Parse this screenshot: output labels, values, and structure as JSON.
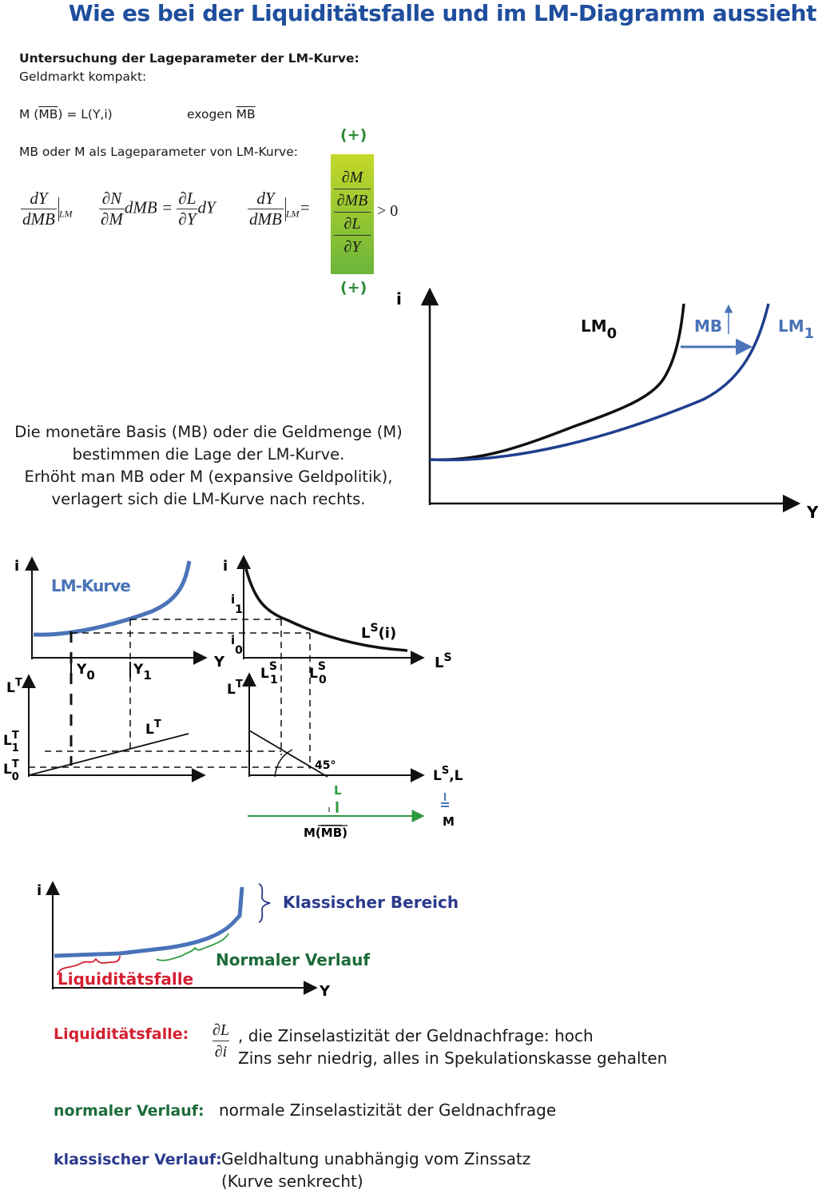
{
  "title": "Wie es bei der Liquiditätsfalle und im LM-Diagramm aussieht",
  "section_heading": "Untersuchung der Lageparameter der LM-Kurve:",
  "subheading": "Geldmarkt kompakt:",
  "equation": "M (MB) = L(Y,i)",
  "equation_overline_part": "MB",
  "exogen_label": "exogen",
  "exogen_var": "MB",
  "lageparameter_text": "MB oder M als Lageparameter von LM-Kurve:",
  "derivation": {
    "frac1_num": "dY",
    "frac1_den": "dMB",
    "sub_lm": "LM",
    "frac2_num": "∂N",
    "frac2_den": "∂M",
    "dmb": "dMB =",
    "frac3_num": "∂L",
    "frac3_den": "∂Y",
    "dy": "dY",
    "frac4_num": "dY",
    "frac4_den": "dMB",
    "eq_sign": "=",
    "box_top_num": "∂M",
    "box_top_den": "∂MB",
    "box_bot_num": "∂L",
    "box_bot_den": "∂Y",
    "gt_zero": "> 0",
    "sign_top": "(+)",
    "sign_bottom": "(+)"
  },
  "explanation_lines": [
    "Die monetäre Basis (MB) oder die Geldmenge (M)",
    "bestimmen die Lage der LM-Kurve.",
    "Erhöht man MB oder M (expansive Geldpolitik),",
    "verlagert sich die LM-Kurve nach rechts."
  ],
  "lm_shift_chart": {
    "y_axis_label": "i",
    "x_axis_label": "Y",
    "curve0_label": "LM",
    "curve0_sub": "0",
    "curve1_label": "LM",
    "curve1_sub": "1",
    "shift_label": "MB",
    "colors": {
      "lm0": "#111111",
      "lm1": "#1f3f8f",
      "arrow": "#4a73b8"
    }
  },
  "four_quadrant": {
    "q1": {
      "y": "i",
      "x": "Y",
      "curve": "LM-Kurve",
      "y0": "Y",
      "y0_sub": "0",
      "y1": "Y",
      "y1_sub": "1"
    },
    "q2": {
      "y": "i",
      "x": "L",
      "x_sup": "S",
      "curve": "L",
      "curve_sup": "S",
      "curve_arg": "(i)",
      "i1": "i",
      "i1_sub": "1",
      "i0": "i",
      "i0_sub": "0",
      "ls1": "L",
      "ls1_sup": "S",
      "ls1_sub": "1",
      "ls0": "L",
      "ls0_sup": "S",
      "ls0_sub": "0"
    },
    "q3": {
      "y": "L",
      "y_sup": "T",
      "curve": "L",
      "curve_sup": "T",
      "lt1": "L",
      "lt1_sup": "T",
      "lt1_sub": "1",
      "lt0": "L",
      "lt0_sup": "T",
      "lt0_sub": "0"
    },
    "q4": {
      "y": "L",
      "y_sup": "T",
      "x": "L",
      "x_sup": "S",
      "x_suffix": ",L",
      "angle": "45°",
      "l_label": "L",
      "m_label": "M",
      "mmb_label": "M(MB)",
      "mmb_overline": "MB"
    },
    "colors": {
      "lm": "#4a73b8",
      "green": "#2e9a3e"
    }
  },
  "liquidity_chart": {
    "y_axis_label": "i",
    "x_axis_label": "Y",
    "classic_label": "Klassischer Bereich",
    "normal_label": "Normaler Verlauf",
    "trap_label": "Liquiditätsfalle",
    "colors": {
      "curve": "#4a73b8",
      "classic": "#2b3a8c",
      "normal": "#1c6b3a",
      "trap": "#d42030"
    }
  },
  "definitions": {
    "trap_term": "Liquiditätsfalle:",
    "trap_frac_num": "∂L",
    "trap_frac_den": "∂i",
    "trap_line1": ", die Zinselastizität der Geldnachfrage: hoch",
    "trap_line2": "Zins sehr niedrig, alles in Spekulationskasse gehalten",
    "normal_term": "normaler Verlauf:",
    "normal_text": "normale Zinselastizität der Geldnachfrage",
    "classic_term": "klassischer Verlauf:",
    "classic_line1": "Geldhaltung unabhängig vom Zinssatz",
    "classic_line2": "(Kurve senkrecht)"
  }
}
